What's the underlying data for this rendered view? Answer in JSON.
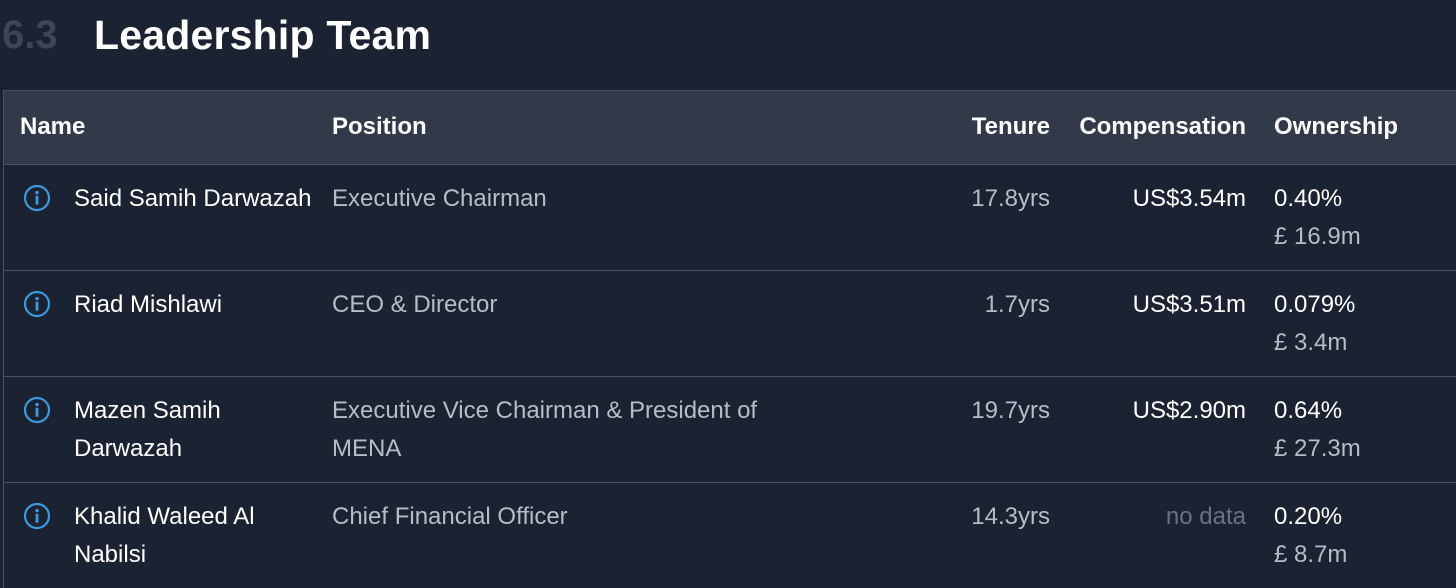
{
  "section": {
    "number": "6.3",
    "title": "Leadership Team"
  },
  "table": {
    "headers": {
      "name": "Name",
      "position": "Position",
      "tenure": "Tenure",
      "compensation": "Compensation",
      "ownership": "Ownership"
    },
    "rows": [
      {
        "name": "Said Samih Darwazah",
        "position": "Executive Chairman",
        "tenure": "17.8yrs",
        "compensation": "US$3.54m",
        "ownership_pct": "0.40%",
        "ownership_value": "£ 16.9m"
      },
      {
        "name": "Riad Mishlawi",
        "position": "CEO & Director",
        "tenure": "1.7yrs",
        "compensation": "US$3.51m",
        "ownership_pct": "0.079%",
        "ownership_value": "£ 3.4m"
      },
      {
        "name": "Mazen Samih Darwazah",
        "position": "Executive Vice Chairman & President of MENA",
        "tenure": "19.7yrs",
        "compensation": "US$2.90m",
        "ownership_pct": "0.64%",
        "ownership_value": "£ 27.3m"
      },
      {
        "name": "Khalid Waleed Al Nabilsi",
        "position": "Chief Financial Officer",
        "tenure": "14.3yrs",
        "compensation": "no data",
        "ownership_pct": "0.20%",
        "ownership_value": "£ 8.7m"
      }
    ]
  },
  "icons": {
    "info": "info-icon"
  },
  "colors": {
    "background": "#1b2231",
    "header_bg": "#323a49",
    "accent_icon": "#3b9be0",
    "muted_text": "#b7bcc6",
    "nodata_text": "#6a7180"
  }
}
